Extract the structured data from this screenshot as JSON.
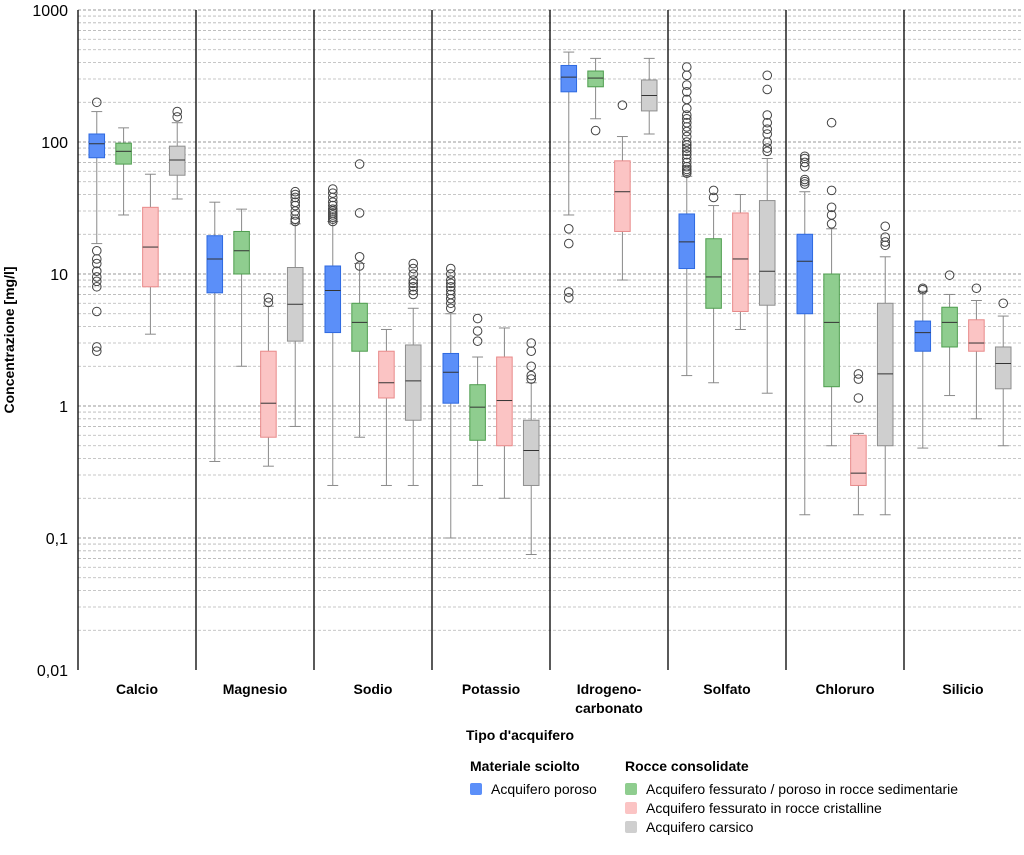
{
  "chart_data": {
    "type": "box",
    "ylabel": "Concentrazione [mg/l]",
    "yscale": "log",
    "ylim": [
      0.01,
      1000
    ],
    "yticks": [
      "0,01",
      "0,1",
      "1",
      "10",
      "100",
      "1000"
    ],
    "grid": true,
    "groups": [
      "Calcio",
      "Magnesio",
      "Sodio",
      "Potassio",
      "Idrogeno-carbonato",
      "Solfato",
      "Chloruro",
      "Silicio"
    ],
    "group_labels": [
      [
        "Calcio"
      ],
      [
        "Magnesio"
      ],
      [
        "Sodio"
      ],
      [
        "Potassio"
      ],
      [
        "Idrogeno-",
        "carbonato"
      ],
      [
        "Solfato"
      ],
      [
        "Chloruro"
      ],
      [
        "Silicio"
      ]
    ],
    "series": [
      {
        "name": "Acquifero poroso",
        "color": "#5b8ff9",
        "edge": "#2f6ae0",
        "boxes": [
          {
            "whisker_low": 17,
            "q1": 76,
            "median": 97,
            "q3": 115,
            "whisker_high": 170,
            "outliers": [
              200,
              15,
              13,
              12,
              10.5,
              9.5,
              8.8,
              8,
              5.2,
              2.8,
              2.6
            ]
          },
          {
            "whisker_low": 0.38,
            "q1": 7.2,
            "median": 13,
            "q3": 19.5,
            "whisker_high": 35,
            "outliers": []
          },
          {
            "whisker_low": 0.25,
            "q1": 3.6,
            "median": 7.5,
            "q3": 11.5,
            "whisker_high": 25,
            "outliers": [
              44,
              41,
              38,
              35,
              33,
              31,
              30,
              29,
              28,
              27,
              26,
              25
            ]
          },
          {
            "whisker_low": 0.1,
            "q1": 1.05,
            "median": 1.8,
            "q3": 2.5,
            "whisker_high": 5,
            "outliers": [
              11,
              10,
              9,
              8.5,
              8,
              7.5,
              7,
              6.5,
              6,
              5.5
            ]
          },
          {
            "whisker_low": 28,
            "q1": 240,
            "median": 310,
            "q3": 380,
            "whisker_high": 480,
            "outliers": [
              22,
              17,
              7.3,
              6.6
            ]
          },
          {
            "whisker_low": 1.7,
            "q1": 11,
            "median": 17.5,
            "q3": 28.5,
            "whisker_high": 55,
            "outliers": [
              370,
              320,
              270,
              240,
              210,
              180,
              160,
              150,
              140,
              130,
              120,
              110,
              100,
              95,
              90,
              85,
              80,
              75,
              70,
              65,
              62,
              60,
              58
            ]
          },
          {
            "whisker_low": 0.15,
            "q1": 5,
            "median": 12.5,
            "q3": 20,
            "whisker_high": 42,
            "outliers": [
              78,
              75,
              70,
              65,
              52,
              50,
              48
            ]
          },
          {
            "whisker_low": 0.48,
            "q1": 2.6,
            "median": 3.6,
            "q3": 4.4,
            "whisker_high": 7.4,
            "outliers": [
              7.8,
              7.6
            ]
          }
        ]
      },
      {
        "name": "Acquifero fessurato / poroso in rocce sedimentarie",
        "color": "#8fcd8f",
        "edge": "#4e9d4e",
        "boxes": [
          {
            "whisker_low": 28,
            "q1": 68,
            "median": 85,
            "q3": 98,
            "whisker_high": 128,
            "outliers": []
          },
          {
            "whisker_low": 2,
            "q1": 10,
            "median": 15,
            "q3": 21,
            "whisker_high": 31,
            "outliers": []
          },
          {
            "whisker_low": 0.58,
            "q1": 2.6,
            "median": 4.3,
            "q3": 6,
            "whisker_high": 12,
            "outliers": [
              68,
              29,
              13.5,
              11.5
            ]
          },
          {
            "whisker_low": 0.25,
            "q1": 0.55,
            "median": 0.98,
            "q3": 1.45,
            "whisker_high": 2.35,
            "outliers": [
              4.6,
              3.7,
              3.1
            ]
          },
          {
            "whisker_low": 150,
            "q1": 262,
            "median": 305,
            "q3": 345,
            "whisker_high": 430,
            "outliers": [
              122
            ]
          },
          {
            "whisker_low": 1.5,
            "q1": 5.5,
            "median": 9.5,
            "q3": 18.5,
            "whisker_high": 33,
            "outliers": [
              43,
              38
            ]
          },
          {
            "whisker_low": 0.5,
            "q1": 1.4,
            "median": 4.3,
            "q3": 10,
            "whisker_high": 22,
            "outliers": [
              140,
              43,
              32,
              28,
              24
            ]
          },
          {
            "whisker_low": 1.2,
            "q1": 2.8,
            "median": 4.3,
            "q3": 5.6,
            "whisker_high": 7,
            "outliers": [
              9.8
            ]
          }
        ]
      },
      {
        "name": "Acquifero fessurato in rocce cristalline",
        "color": "#fbc4c4",
        "edge": "#e88a8a",
        "boxes": [
          {
            "whisker_low": 3.5,
            "q1": 8,
            "median": 16,
            "q3": 32,
            "whisker_high": 57,
            "outliers": []
          },
          {
            "whisker_low": 0.35,
            "q1": 0.58,
            "median": 1.05,
            "q3": 2.6,
            "whisker_high": 5.7,
            "outliers": [
              6.6,
              6.1
            ]
          },
          {
            "whisker_low": 0.25,
            "q1": 1.15,
            "median": 1.5,
            "q3": 2.6,
            "whisker_high": 3.8,
            "outliers": []
          },
          {
            "whisker_low": 0.2,
            "q1": 0.5,
            "median": 1.1,
            "q3": 2.35,
            "whisker_high": 3.9,
            "outliers": []
          },
          {
            "whisker_low": 9,
            "q1": 21,
            "median": 42,
            "q3": 72,
            "whisker_high": 110,
            "outliers": [
              190
            ]
          },
          {
            "whisker_low": 3.8,
            "q1": 5.2,
            "median": 13,
            "q3": 29,
            "whisker_high": 40,
            "outliers": []
          },
          {
            "whisker_low": 0.15,
            "q1": 0.25,
            "median": 0.31,
            "q3": 0.6,
            "whisker_high": 0.62,
            "outliers": [
              1.75,
              1.6,
              1.15
            ]
          },
          {
            "whisker_low": 0.8,
            "q1": 2.6,
            "median": 3,
            "q3": 4.5,
            "whisker_high": 6.3,
            "outliers": [
              7.8
            ]
          }
        ]
      },
      {
        "name": "Acquifero carsico",
        "color": "#cfcfcf",
        "edge": "#8f8f8f",
        "boxes": [
          {
            "whisker_low": 37,
            "q1": 56,
            "median": 73,
            "q3": 93,
            "whisker_high": 140,
            "outliers": [
              170,
              155
            ]
          },
          {
            "whisker_low": 0.7,
            "q1": 3.1,
            "median": 5.9,
            "q3": 11.2,
            "whisker_high": 24,
            "outliers": [
              42,
              40,
              38,
              35,
              33,
              30,
              28,
              26,
              25
            ]
          },
          {
            "whisker_low": 0.25,
            "q1": 0.78,
            "median": 1.55,
            "q3": 2.9,
            "whisker_high": 5.5,
            "outliers": [
              12,
              11,
              10,
              9,
              8.5,
              8,
              7.5,
              7
            ]
          },
          {
            "whisker_low": 0.075,
            "q1": 0.25,
            "median": 0.46,
            "q3": 0.78,
            "whisker_high": 1.5,
            "outliers": [
              3,
              2.6,
              2,
              1.7,
              1.6
            ]
          },
          {
            "whisker_low": 115,
            "q1": 172,
            "median": 225,
            "q3": 295,
            "whisker_high": 430,
            "outliers": []
          },
          {
            "whisker_low": 1.25,
            "q1": 5.8,
            "median": 10.5,
            "q3": 36,
            "whisker_high": 75,
            "outliers": [
              320,
              250,
              160,
              140,
              125,
              115,
              100,
              90,
              85
            ]
          },
          {
            "whisker_low": 0.15,
            "q1": 0.5,
            "median": 1.75,
            "q3": 6,
            "whisker_high": 13.5,
            "outliers": [
              23,
              19,
              17.5,
              16.5
            ]
          },
          {
            "whisker_low": 0.5,
            "q1": 1.35,
            "median": 2.1,
            "q3": 2.8,
            "whisker_high": 4.8,
            "outliers": [
              6
            ]
          }
        ]
      }
    ]
  },
  "legend": {
    "title": "Tipo d'acquifero",
    "loose_title": "Materiale sciolto",
    "loose_items": [
      {
        "label": "Acquifero poroso",
        "color": "#5b8ff9"
      }
    ],
    "rock_title": "Rocce consolidate",
    "rock_items": [
      {
        "label": "Acquifero fessurato / poroso in rocce sedimentarie",
        "color": "#8fcd8f"
      },
      {
        "label": "Acquifero fessurato in rocce cristalline",
        "color": "#fbc4c4"
      },
      {
        "label": "Acquifero carsico",
        "color": "#cfcfcf"
      }
    ]
  }
}
